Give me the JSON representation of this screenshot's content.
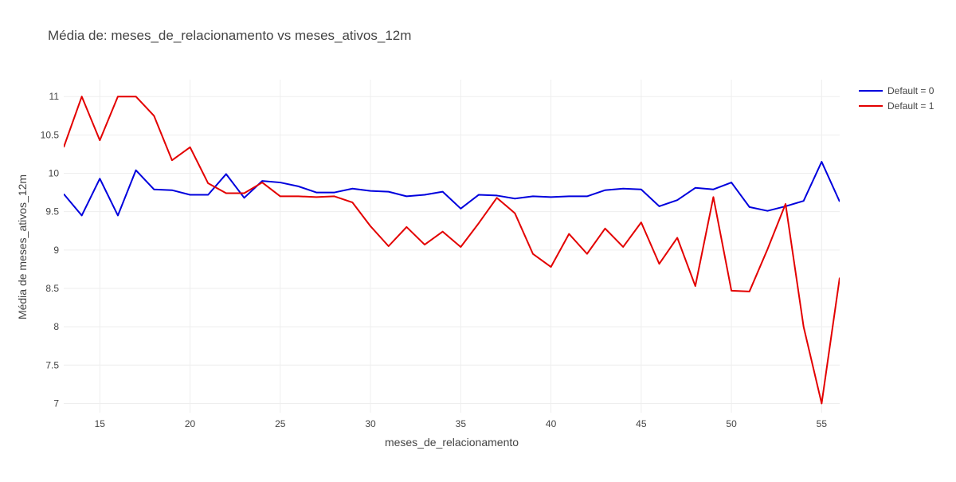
{
  "chart_data": {
    "type": "line",
    "title": "Média de: meses_de_relacionamento vs meses_ativos_12m",
    "xlabel": "meses_de_relacionamento",
    "ylabel": "Média de meses_ativos_12m",
    "xlim": [
      13,
      56
    ],
    "ylim": [
      6.88,
      11.22
    ],
    "xticks": [
      15,
      20,
      25,
      30,
      35,
      40,
      45,
      50,
      55
    ],
    "yticks": [
      7,
      7.5,
      8,
      8.5,
      9,
      9.5,
      10,
      10.5,
      11
    ],
    "ytick_labels": [
      "7",
      "7.5",
      "8",
      "8.5",
      "9",
      "9.5",
      "10",
      "10.5",
      "11"
    ],
    "grid": true,
    "legend_position": "top-right",
    "x": [
      13,
      14,
      15,
      16,
      17,
      18,
      19,
      20,
      21,
      22,
      23,
      24,
      25,
      26,
      27,
      28,
      29,
      30,
      31,
      32,
      33,
      34,
      35,
      36,
      37,
      38,
      39,
      40,
      41,
      42,
      43,
      44,
      45,
      46,
      47,
      48,
      49,
      50,
      51,
      52,
      53,
      54,
      55,
      56
    ],
    "series": [
      {
        "name": "Default = 0",
        "color": "#0000dd",
        "values": [
          9.73,
          9.45,
          9.93,
          9.45,
          10.04,
          9.79,
          9.78,
          9.72,
          9.72,
          9.99,
          9.68,
          9.9,
          9.88,
          9.83,
          9.75,
          9.75,
          9.8,
          9.77,
          9.76,
          9.7,
          9.72,
          9.76,
          9.54,
          9.72,
          9.71,
          9.67,
          9.7,
          9.69,
          9.7,
          9.7,
          9.78,
          9.8,
          9.79,
          9.57,
          9.65,
          9.81,
          9.79,
          9.88,
          9.56,
          9.51,
          9.57,
          9.64,
          10.15,
          9.63
        ]
      },
      {
        "name": "Default = 1",
        "color": "#e30000",
        "values": [
          10.34,
          11.0,
          10.43,
          11.0,
          11.0,
          10.75,
          10.17,
          10.34,
          9.87,
          9.74,
          9.74,
          9.88,
          9.7,
          9.7,
          9.69,
          9.7,
          9.62,
          9.31,
          9.05,
          9.3,
          9.07,
          9.24,
          9.04,
          9.35,
          9.68,
          9.48,
          8.95,
          8.78,
          9.21,
          8.95,
          9.28,
          9.04,
          9.36,
          8.82,
          9.16,
          8.53,
          9.69,
          8.47,
          8.46,
          9.01,
          9.6,
          8.0,
          7.0,
          8.64
        ]
      }
    ]
  }
}
